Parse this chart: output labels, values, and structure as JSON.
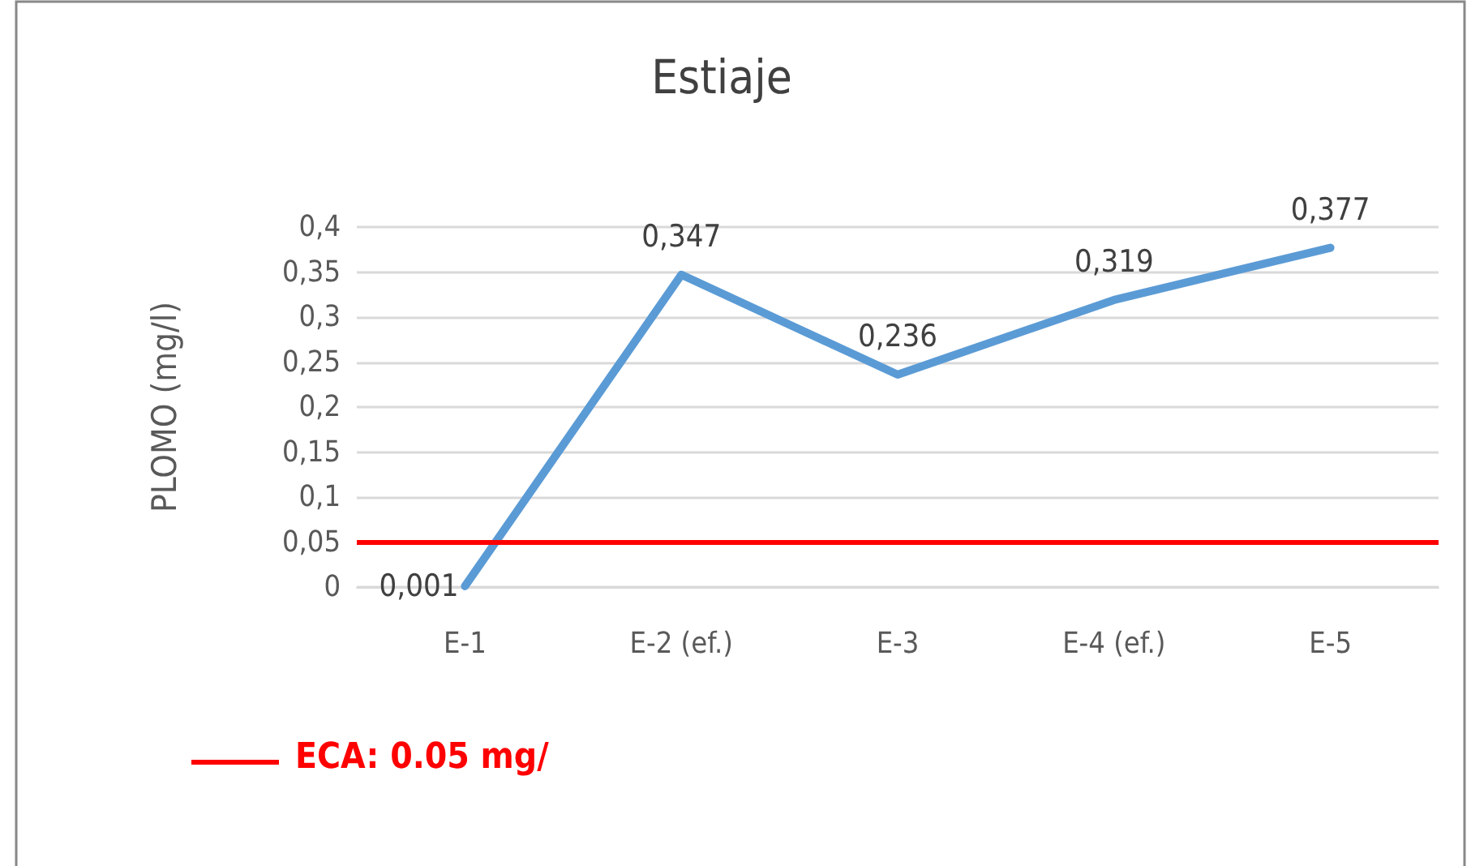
{
  "chart_data": {
    "type": "line",
    "title": "Estiaje",
    "ylabel": "PLOMO (mg/l)",
    "categories": [
      "E-1",
      "E-2 (ef.)",
      "E-3",
      "E-4 (ef.)",
      "E-5"
    ],
    "series": [
      {
        "color": "#5b9bd5",
        "values": [
          0.001,
          0.347,
          0.236,
          0.319,
          0.377
        ],
        "value_labels": [
          "0,001",
          "0,347",
          "0,236",
          "0,319",
          "0,377"
        ]
      }
    ],
    "ylim": [
      0,
      0.4
    ],
    "yticks": [
      {
        "value": 0,
        "label": "0"
      },
      {
        "value": 0.05,
        "label": "0,05"
      },
      {
        "value": 0.1,
        "label": "0,1"
      },
      {
        "value": 0.15,
        "label": "0,15"
      },
      {
        "value": 0.2,
        "label": "0,2"
      },
      {
        "value": 0.25,
        "label": "0,25"
      },
      {
        "value": 0.3,
        "label": "0,3"
      },
      {
        "value": 0.35,
        "label": "0,35"
      },
      {
        "value": 0.4,
        "label": "0,4"
      }
    ],
    "ref_lines": [
      {
        "axis": "y",
        "value": 0.05,
        "label": "ECA: 0.05 mg/",
        "color": "#ff0000"
      }
    ],
    "grid": "y",
    "marker": "none",
    "line_style": "solid",
    "legend": "bottom left"
  }
}
